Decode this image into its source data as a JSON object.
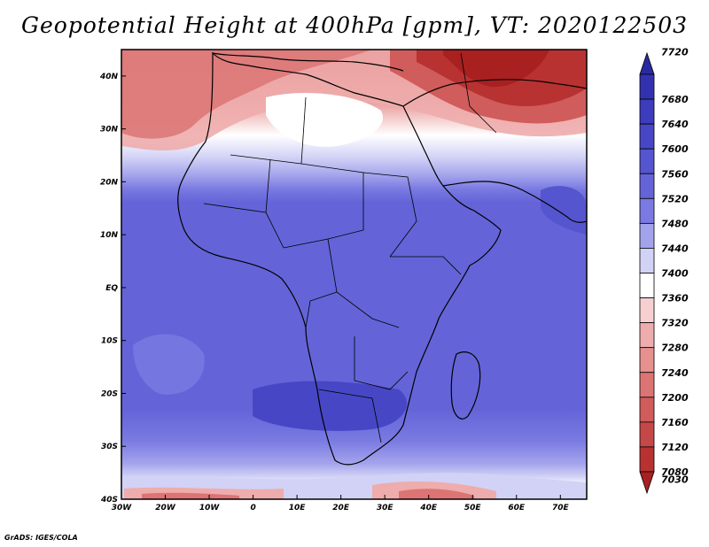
{
  "title": "Geopotential Height at 400hPa [gpm], VT: 2020122503",
  "footer": "GrADS: IGES/COLA",
  "map": {
    "region": "Africa",
    "lon_range": [
      -30,
      76
    ],
    "lat_range": [
      -40,
      45
    ],
    "lon_ticks": [
      "30W",
      "20W",
      "10W",
      "0",
      "10E",
      "20E",
      "30E",
      "40E",
      "50E",
      "60E",
      "70E"
    ],
    "lon_tick_values": [
      -30,
      -20,
      -10,
      0,
      10,
      20,
      30,
      40,
      50,
      60,
      70
    ],
    "lat_ticks": [
      "40N",
      "30N",
      "20N",
      "10N",
      "EQ",
      "10S",
      "20S",
      "30S",
      "40S"
    ],
    "lat_tick_values": [
      40,
      30,
      20,
      10,
      0,
      -10,
      -20,
      -30,
      -40
    ]
  },
  "colorbar": {
    "levels": [
      7720,
      7680,
      7640,
      7600,
      7560,
      7520,
      7480,
      7440,
      7400,
      7360,
      7320,
      7280,
      7240,
      7200,
      7160,
      7120,
      7080,
      7030
    ],
    "labels": [
      "7720",
      "7680",
      "7640",
      "7600",
      "7560",
      "7520",
      "7480",
      "7440",
      "7400",
      "7360",
      "7320",
      "7280",
      "7240",
      "7200",
      "7160",
      "7120",
      "7080",
      "7030"
    ],
    "colors": [
      "#2a2aa0",
      "#3232b0",
      "#3c3cbc",
      "#4747c6",
      "#5555cf",
      "#6464d8",
      "#7a7ae2",
      "#a3a3ec",
      "#d2d2f6",
      "#ffffff",
      "#f6d0d0",
      "#eeacac",
      "#e69090",
      "#dc7474",
      "#d05c5c",
      "#c44848",
      "#b83232",
      "#a82020"
    ],
    "unit": "gpm"
  }
}
